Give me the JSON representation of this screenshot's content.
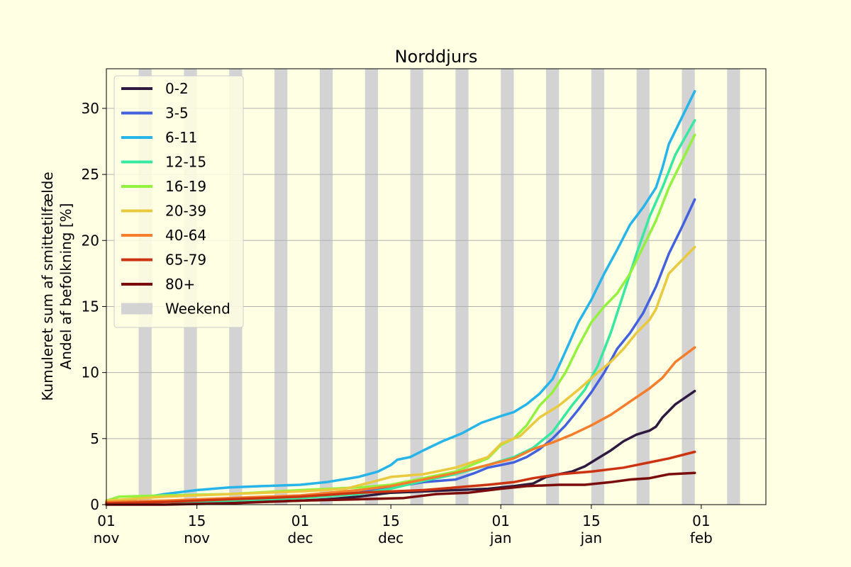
{
  "chart_data": {
    "type": "line",
    "title": "Norddjurs",
    "ylabel_line1": "Kumuleret sum af smittetilfælde",
    "ylabel_line2": "Andel af befolkning [%]",
    "xlabel": "",
    "x_range": [
      "2021-11-01",
      "2022-02-11"
    ],
    "ylim": [
      0,
      33
    ],
    "y_ticks": [
      0,
      5,
      10,
      15,
      20,
      25,
      30
    ],
    "x_ticks": [
      {
        "date": "2021-11-01",
        "day": "01",
        "month": "nov"
      },
      {
        "date": "2021-11-15",
        "day": "15",
        "month": "nov"
      },
      {
        "date": "2021-12-01",
        "day": "01",
        "month": "dec"
      },
      {
        "date": "2021-12-15",
        "day": "15",
        "month": "dec"
      },
      {
        "date": "2022-01-01",
        "day": "01",
        "month": "jan"
      },
      {
        "date": "2022-01-15",
        "day": "15",
        "month": "jan"
      },
      {
        "date": "2022-02-01",
        "day": "01",
        "month": "feb"
      }
    ],
    "grid": "horizontal",
    "legend_position": "top-left",
    "weekend_label": "Weekend",
    "weekend_color": "#d3d3d3",
    "weekends": [
      [
        "2021-11-06",
        "2021-11-08"
      ],
      [
        "2021-11-13",
        "2021-11-15"
      ],
      [
        "2021-11-20",
        "2021-11-22"
      ],
      [
        "2021-11-27",
        "2021-11-29"
      ],
      [
        "2021-12-04",
        "2021-12-06"
      ],
      [
        "2021-12-11",
        "2021-12-13"
      ],
      [
        "2021-12-18",
        "2021-12-20"
      ],
      [
        "2021-12-25",
        "2021-12-27"
      ],
      [
        "2022-01-01",
        "2022-01-03"
      ],
      [
        "2022-01-08",
        "2022-01-10"
      ],
      [
        "2022-01-15",
        "2022-01-17"
      ],
      [
        "2022-01-22",
        "2022-01-24"
      ],
      [
        "2022-01-29",
        "2022-01-31"
      ],
      [
        "2022-02-05",
        "2022-02-07"
      ]
    ],
    "series": [
      {
        "name": "0-2",
        "color": "#2d1a3e",
        "points": [
          [
            "2021-11-01",
            0.2
          ],
          [
            "2021-11-10",
            0.2
          ],
          [
            "2021-11-20",
            0.2
          ],
          [
            "2021-12-01",
            0.3
          ],
          [
            "2021-12-05",
            0.4
          ],
          [
            "2021-12-10",
            0.6
          ],
          [
            "2021-12-15",
            0.9
          ],
          [
            "2021-12-20",
            1.0
          ],
          [
            "2021-12-25",
            1.1
          ],
          [
            "2021-12-30",
            1.2
          ],
          [
            "2022-01-03",
            1.4
          ],
          [
            "2022-01-06",
            1.6
          ],
          [
            "2022-01-08",
            2.1
          ],
          [
            "2022-01-10",
            2.3
          ],
          [
            "2022-01-12",
            2.5
          ],
          [
            "2022-01-14",
            2.9
          ],
          [
            "2022-01-16",
            3.5
          ],
          [
            "2022-01-18",
            4.1
          ],
          [
            "2022-01-20",
            4.8
          ],
          [
            "2022-01-22",
            5.3
          ],
          [
            "2022-01-24",
            5.6
          ],
          [
            "2022-01-25",
            5.9
          ],
          [
            "2022-01-26",
            6.6
          ],
          [
            "2022-01-28",
            7.6
          ],
          [
            "2022-01-31",
            8.6
          ]
        ]
      },
      {
        "name": "3-5",
        "color": "#4361dd",
        "points": [
          [
            "2021-11-01",
            0.1
          ],
          [
            "2021-11-10",
            0.2
          ],
          [
            "2021-11-20",
            0.3
          ],
          [
            "2021-12-01",
            0.6
          ],
          [
            "2021-12-10",
            0.9
          ],
          [
            "2021-12-15",
            1.3
          ],
          [
            "2021-12-20",
            1.7
          ],
          [
            "2021-12-25",
            1.9
          ],
          [
            "2021-12-28",
            2.4
          ],
          [
            "2021-12-30",
            2.8
          ],
          [
            "2022-01-01",
            3.0
          ],
          [
            "2022-01-03",
            3.2
          ],
          [
            "2022-01-05",
            3.6
          ],
          [
            "2022-01-07",
            4.2
          ],
          [
            "2022-01-09",
            5.0
          ],
          [
            "2022-01-11",
            6.0
          ],
          [
            "2022-01-13",
            7.2
          ],
          [
            "2022-01-15",
            8.5
          ],
          [
            "2022-01-17",
            10.0
          ],
          [
            "2022-01-19",
            11.8
          ],
          [
            "2022-01-21",
            13.0
          ],
          [
            "2022-01-23",
            14.5
          ],
          [
            "2022-01-25",
            16.5
          ],
          [
            "2022-01-27",
            19.0
          ],
          [
            "2022-01-29",
            21.0
          ],
          [
            "2022-01-31",
            23.1
          ]
        ]
      },
      {
        "name": "6-11",
        "color": "#27b4e8",
        "points": [
          [
            "2021-11-01",
            0.2
          ],
          [
            "2021-11-05",
            0.4
          ],
          [
            "2021-11-10",
            0.8
          ],
          [
            "2021-11-15",
            1.1
          ],
          [
            "2021-11-20",
            1.3
          ],
          [
            "2021-11-25",
            1.4
          ],
          [
            "2021-12-01",
            1.5
          ],
          [
            "2021-12-05",
            1.7
          ],
          [
            "2021-12-10",
            2.1
          ],
          [
            "2021-12-13",
            2.5
          ],
          [
            "2021-12-15",
            3.0
          ],
          [
            "2021-12-16",
            3.4
          ],
          [
            "2021-12-18",
            3.6
          ],
          [
            "2021-12-20",
            4.1
          ],
          [
            "2021-12-23",
            4.8
          ],
          [
            "2021-12-26",
            5.4
          ],
          [
            "2021-12-29",
            6.2
          ],
          [
            "2022-01-01",
            6.7
          ],
          [
            "2022-01-03",
            7.0
          ],
          [
            "2022-01-05",
            7.6
          ],
          [
            "2022-01-07",
            8.4
          ],
          [
            "2022-01-09",
            9.5
          ],
          [
            "2022-01-10",
            10.5
          ],
          [
            "2022-01-11",
            11.6
          ],
          [
            "2022-01-13",
            13.8
          ],
          [
            "2022-01-15",
            15.5
          ],
          [
            "2022-01-17",
            17.5
          ],
          [
            "2022-01-19",
            19.3
          ],
          [
            "2022-01-21",
            21.2
          ],
          [
            "2022-01-23",
            22.5
          ],
          [
            "2022-01-25",
            24.0
          ],
          [
            "2022-01-26",
            25.5
          ],
          [
            "2022-01-27",
            27.3
          ],
          [
            "2022-01-31",
            31.3
          ]
        ]
      },
      {
        "name": "12-15",
        "color": "#37e8a0",
        "points": [
          [
            "2021-11-01",
            0.1
          ],
          [
            "2021-11-10",
            0.2
          ],
          [
            "2021-11-20",
            0.3
          ],
          [
            "2021-12-01",
            0.5
          ],
          [
            "2021-12-10",
            0.8
          ],
          [
            "2021-12-15",
            1.2
          ],
          [
            "2021-12-20",
            1.8
          ],
          [
            "2021-12-25",
            2.3
          ],
          [
            "2021-12-30",
            3.0
          ],
          [
            "2022-01-03",
            3.6
          ],
          [
            "2022-01-06",
            4.3
          ],
          [
            "2022-01-09",
            5.5
          ],
          [
            "2022-01-12",
            7.5
          ],
          [
            "2022-01-14",
            8.7
          ],
          [
            "2022-01-16",
            10.5
          ],
          [
            "2022-01-18",
            13.0
          ],
          [
            "2022-01-20",
            16.0
          ],
          [
            "2022-01-22",
            19.0
          ],
          [
            "2022-01-24",
            21.8
          ],
          [
            "2022-01-26",
            24.0
          ],
          [
            "2022-01-28",
            26.5
          ],
          [
            "2022-01-31",
            29.1
          ]
        ]
      },
      {
        "name": "16-19",
        "color": "#93f23d",
        "points": [
          [
            "2021-11-01",
            0.3
          ],
          [
            "2021-11-03",
            0.6
          ],
          [
            "2021-11-10",
            0.7
          ],
          [
            "2021-11-20",
            0.8
          ],
          [
            "2021-12-01",
            1.1
          ],
          [
            "2021-12-10",
            1.3
          ],
          [
            "2021-12-15",
            1.5
          ],
          [
            "2021-12-20",
            2.0
          ],
          [
            "2021-12-25",
            2.5
          ],
          [
            "2021-12-30",
            3.5
          ],
          [
            "2022-01-01",
            4.5
          ],
          [
            "2022-01-03",
            5.0
          ],
          [
            "2022-01-05",
            6.0
          ],
          [
            "2022-01-07",
            7.5
          ],
          [
            "2022-01-09",
            8.5
          ],
          [
            "2022-01-11",
            10.0
          ],
          [
            "2022-01-13",
            12.0
          ],
          [
            "2022-01-15",
            13.8
          ],
          [
            "2022-01-17",
            15.0
          ],
          [
            "2022-01-19",
            16.0
          ],
          [
            "2022-01-21",
            17.5
          ],
          [
            "2022-01-23",
            19.5
          ],
          [
            "2022-01-25",
            21.5
          ],
          [
            "2022-01-27",
            24.0
          ],
          [
            "2022-01-29",
            26.0
          ],
          [
            "2022-01-31",
            28.0
          ]
        ]
      },
      {
        "name": "20-39",
        "color": "#e9c93d",
        "points": [
          [
            "2021-11-01",
            0.3
          ],
          [
            "2021-11-10",
            0.6
          ],
          [
            "2021-11-20",
            0.8
          ],
          [
            "2021-12-01",
            1.0
          ],
          [
            "2021-12-08",
            1.2
          ],
          [
            "2021-12-12",
            1.7
          ],
          [
            "2021-12-15",
            2.1
          ],
          [
            "2021-12-20",
            2.3
          ],
          [
            "2021-12-25",
            2.8
          ],
          [
            "2021-12-30",
            3.6
          ],
          [
            "2022-01-01",
            4.6
          ],
          [
            "2022-01-04",
            5.2
          ],
          [
            "2022-01-07",
            6.6
          ],
          [
            "2022-01-10",
            7.5
          ],
          [
            "2022-01-13",
            8.7
          ],
          [
            "2022-01-16",
            10.0
          ],
          [
            "2022-01-18",
            10.8
          ],
          [
            "2022-01-20",
            11.8
          ],
          [
            "2022-01-22",
            13.0
          ],
          [
            "2022-01-24",
            14.0
          ],
          [
            "2022-01-25",
            14.8
          ],
          [
            "2022-01-27",
            17.5
          ],
          [
            "2022-01-31",
            19.5
          ]
        ]
      },
      {
        "name": "40-64",
        "color": "#f47e2b",
        "points": [
          [
            "2021-11-01",
            0.2
          ],
          [
            "2021-11-10",
            0.3
          ],
          [
            "2021-11-20",
            0.5
          ],
          [
            "2021-12-01",
            0.7
          ],
          [
            "2021-12-10",
            1.1
          ],
          [
            "2021-12-15",
            1.4
          ],
          [
            "2021-12-20",
            1.9
          ],
          [
            "2021-12-25",
            2.4
          ],
          [
            "2021-12-30",
            3.0
          ],
          [
            "2022-01-03",
            3.5
          ],
          [
            "2022-01-06",
            4.2
          ],
          [
            "2022-01-09",
            4.7
          ],
          [
            "2022-01-12",
            5.3
          ],
          [
            "2022-01-15",
            6.0
          ],
          [
            "2022-01-18",
            6.8
          ],
          [
            "2022-01-21",
            7.8
          ],
          [
            "2022-01-24",
            8.8
          ],
          [
            "2022-01-26",
            9.6
          ],
          [
            "2022-01-28",
            10.8
          ],
          [
            "2022-01-31",
            11.9
          ]
        ]
      },
      {
        "name": "65-79",
        "color": "#cc3311",
        "points": [
          [
            "2021-11-01",
            0.1
          ],
          [
            "2021-11-10",
            0.2
          ],
          [
            "2021-11-20",
            0.4
          ],
          [
            "2021-12-01",
            0.6
          ],
          [
            "2021-12-10",
            0.9
          ],
          [
            "2021-12-15",
            1.0
          ],
          [
            "2021-12-20",
            1.1
          ],
          [
            "2021-12-25",
            1.3
          ],
          [
            "2021-12-30",
            1.5
          ],
          [
            "2022-01-03",
            1.7
          ],
          [
            "2022-01-06",
            2.0
          ],
          [
            "2022-01-10",
            2.3
          ],
          [
            "2022-01-15",
            2.5
          ],
          [
            "2022-01-20",
            2.8
          ],
          [
            "2022-01-24",
            3.2
          ],
          [
            "2022-01-27",
            3.5
          ],
          [
            "2022-01-31",
            4.0
          ]
        ]
      },
      {
        "name": "80+",
        "color": "#7a0c0c",
        "points": [
          [
            "2021-11-01",
            0.0
          ],
          [
            "2021-11-10",
            0.0
          ],
          [
            "2021-11-20",
            0.1
          ],
          [
            "2021-12-01",
            0.3
          ],
          [
            "2021-12-10",
            0.4
          ],
          [
            "2021-12-17",
            0.5
          ],
          [
            "2021-12-22",
            0.8
          ],
          [
            "2021-12-27",
            0.9
          ],
          [
            "2022-01-01",
            1.2
          ],
          [
            "2022-01-05",
            1.4
          ],
          [
            "2022-01-10",
            1.5
          ],
          [
            "2022-01-14",
            1.5
          ],
          [
            "2022-01-18",
            1.7
          ],
          [
            "2022-01-21",
            1.9
          ],
          [
            "2022-01-24",
            2.0
          ],
          [
            "2022-01-27",
            2.3
          ],
          [
            "2022-01-31",
            2.4
          ]
        ]
      }
    ]
  }
}
